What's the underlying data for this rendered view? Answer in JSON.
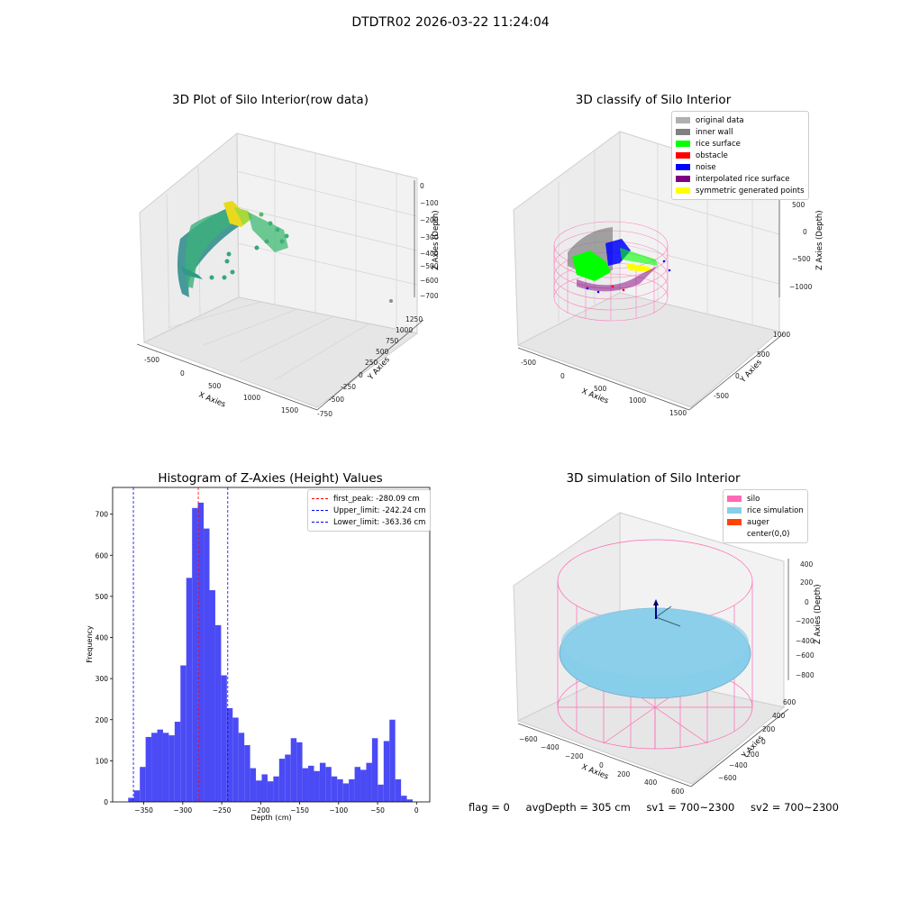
{
  "figure": {
    "suptitle": "DTDTR02 2026-03-22 11:24:04",
    "bottom": {
      "flag": "flag = 0",
      "avg": "avgDepth = 305 cm",
      "sv1": "sv1 = 700~2300",
      "sv2": "sv2 = 700~2300"
    }
  },
  "panels": {
    "p1": {
      "title": "3D Plot of Silo Interior(row data)",
      "xlabel": "X Axies",
      "ylabel": "Y Axies",
      "zlabel": "Z Axies (Depth)",
      "xticks": [
        "-500",
        "0",
        "500",
        "1000",
        "1500"
      ],
      "yticks": [
        "-750",
        "-500",
        "-250",
        "0",
        "250",
        "500",
        "750",
        "1000",
        "1250"
      ],
      "zticks": [
        "0",
        "−100",
        "−200",
        "−300",
        "−400",
        "−500",
        "−600",
        "−700"
      ]
    },
    "p2": {
      "title": "3D classify of Silo Interior",
      "xlabel": "X Axies",
      "ylabel": "Y Axies",
      "zlabel": "Z Axies (Depth)",
      "xticks": [
        "-500",
        "0",
        "500",
        "1000",
        "1500"
      ],
      "yticks": [
        "-500",
        "0",
        "500",
        "1000"
      ],
      "zticks": [
        "500",
        "0",
        "−500",
        "−1000"
      ],
      "legend": [
        {
          "label": "original data",
          "color": "#b0b0b0"
        },
        {
          "label": "inner wall",
          "color": "#808080"
        },
        {
          "label": "rice surface",
          "color": "#00ff00"
        },
        {
          "label": "obstacle",
          "color": "#ff0000"
        },
        {
          "label": "noise",
          "color": "#0000ff"
        },
        {
          "label": "interpolated rice surface",
          "color": "#800080"
        },
        {
          "label": "symmetric generated points",
          "color": "#ffff00"
        }
      ]
    },
    "p4": {
      "title": "3D simulation of Silo Interior",
      "xlabel": "X Axies",
      "ylabel": "Y Axies",
      "zlabel": "Z Axies (Depth)",
      "xticks": [
        "−600",
        "−400",
        "−200",
        "0",
        "200",
        "400",
        "600"
      ],
      "yticks": [
        "−600",
        "−400",
        "−200",
        "0",
        "200",
        "400",
        "600"
      ],
      "zticks": [
        "400",
        "200",
        "0",
        "−200",
        "−400",
        "−600",
        "−800"
      ],
      "legend": [
        {
          "label": "silo",
          "color": "#ff69b4"
        },
        {
          "label": "rice simulation",
          "color": "#87ceeb"
        },
        {
          "label": "auger",
          "color": "#ff4500"
        },
        {
          "label": "center(0,0)",
          "color": "#ffffff"
        }
      ]
    }
  },
  "chart_data": {
    "type": "bar",
    "title": "Histogram of Z-Axies (Height) Values",
    "xlabel": "Depth (cm)",
    "ylabel": "Frequency",
    "xlim": [
      -390,
      17
    ],
    "ylim": [
      0,
      765
    ],
    "xticks": [
      -350,
      -300,
      -250,
      -200,
      -150,
      -100,
      -50,
      0
    ],
    "yticks": [
      0,
      100,
      200,
      300,
      400,
      500,
      600,
      700
    ],
    "bar_color": "#4b4bf5",
    "bins_start": -370,
    "bin_width": 7.45,
    "values": [
      10,
      28,
      85,
      158,
      168,
      176,
      168,
      162,
      195,
      332,
      545,
      715,
      728,
      665,
      515,
      430,
      308,
      228,
      205,
      168,
      138,
      82,
      52,
      67,
      50,
      62,
      105,
      115,
      155,
      145,
      82,
      88,
      75,
      95,
      85,
      62,
      55,
      45,
      55,
      85,
      78,
      95,
      155,
      42,
      148,
      200,
      55,
      15,
      6
    ],
    "lines": [
      {
        "label": "first_peak: -280.09 cm",
        "x": -280.09,
        "color": "#ff0000"
      },
      {
        "label": "Upper_limit: -242.24 cm",
        "x": -242.24,
        "color": "#0000ff"
      },
      {
        "label": "Lower_limit: -363.36 cm",
        "x": -363.36,
        "color": "#0000ff"
      }
    ]
  }
}
